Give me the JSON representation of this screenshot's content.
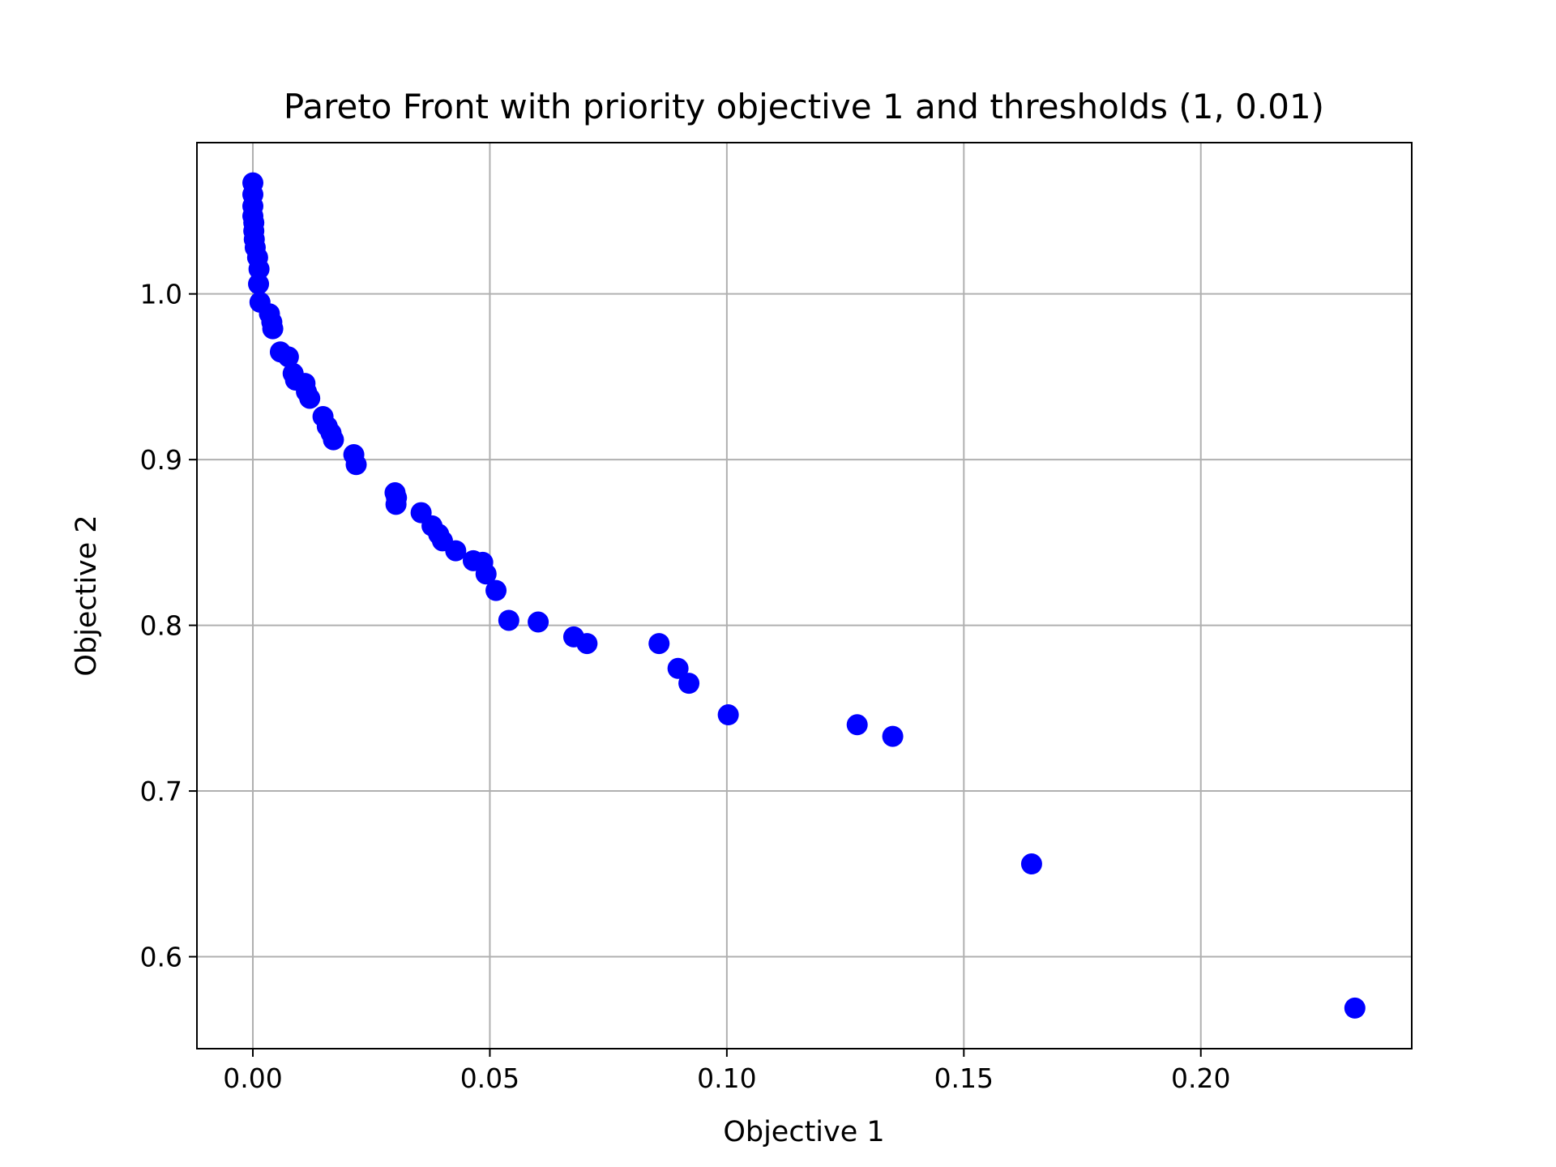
{
  "chart_data": {
    "type": "scatter",
    "title": "Pareto Front with priority objective 1 and thresholds (1, 0.01)",
    "xlabel": "Objective 1",
    "ylabel": "Objective 2",
    "xlim": [
      -0.0118,
      0.2445
    ],
    "ylim": [
      0.5445,
      1.0913
    ],
    "xticks": [
      0.0,
      0.05,
      0.1,
      0.15,
      0.2
    ],
    "xtick_labels": [
      "0.00",
      "0.05",
      "0.10",
      "0.15",
      "0.20"
    ],
    "yticks": [
      0.6,
      0.7,
      0.8,
      0.9,
      1.0
    ],
    "ytick_labels": [
      "0.6",
      "0.7",
      "0.8",
      "0.9",
      "1.0"
    ],
    "grid": true,
    "marker_color": "#0000ff",
    "series": [
      {
        "points": [
          [
            0.0,
            1.067
          ],
          [
            0.0,
            1.06
          ],
          [
            0.0,
            1.053
          ],
          [
            0.0,
            1.047
          ],
          [
            0.0002,
            1.043
          ],
          [
            0.0002,
            1.038
          ],
          [
            0.0003,
            1.033
          ],
          [
            0.0005,
            1.028
          ],
          [
            0.001,
            1.022
          ],
          [
            0.0013,
            1.015
          ],
          [
            0.0012,
            1.006
          ],
          [
            0.0015,
            0.995
          ],
          [
            0.0035,
            0.988
          ],
          [
            0.004,
            0.983
          ],
          [
            0.0042,
            0.979
          ],
          [
            0.0058,
            0.965
          ],
          [
            0.0075,
            0.962
          ],
          [
            0.0085,
            0.952
          ],
          [
            0.009,
            0.948
          ],
          [
            0.011,
            0.946
          ],
          [
            0.0113,
            0.941
          ],
          [
            0.012,
            0.937
          ],
          [
            0.0148,
            0.926
          ],
          [
            0.0157,
            0.92
          ],
          [
            0.0165,
            0.916
          ],
          [
            0.017,
            0.912
          ],
          [
            0.0213,
            0.903
          ],
          [
            0.0218,
            0.897
          ],
          [
            0.03,
            0.88
          ],
          [
            0.0303,
            0.877
          ],
          [
            0.0302,
            0.873
          ],
          [
            0.0355,
            0.868
          ],
          [
            0.0378,
            0.86
          ],
          [
            0.0392,
            0.855
          ],
          [
            0.04,
            0.851
          ],
          [
            0.0428,
            0.845
          ],
          [
            0.0465,
            0.839
          ],
          [
            0.0485,
            0.838
          ],
          [
            0.0492,
            0.831
          ],
          [
            0.0513,
            0.821
          ],
          [
            0.054,
            0.803
          ],
          [
            0.0602,
            0.802
          ],
          [
            0.0677,
            0.793
          ],
          [
            0.0705,
            0.789
          ],
          [
            0.0857,
            0.789
          ],
          [
            0.0897,
            0.774
          ],
          [
            0.092,
            0.765
          ],
          [
            0.1003,
            0.746
          ],
          [
            0.1275,
            0.74
          ],
          [
            0.135,
            0.733
          ],
          [
            0.1643,
            0.656
          ],
          [
            0.2325,
            0.569
          ]
        ]
      }
    ]
  }
}
